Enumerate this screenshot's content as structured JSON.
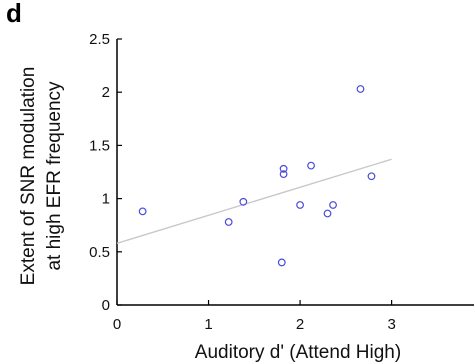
{
  "panel_label": "d",
  "chart_data": {
    "type": "scatter",
    "title": "",
    "xlabel": "Auditory d' (Attend High)",
    "ylabel_lines": [
      "Extent of SNR modulation",
      "at high EFR frequency"
    ],
    "xlim": [
      0,
      3.9
    ],
    "ylim": [
      0,
      2.5
    ],
    "xticks": [
      0,
      1,
      2,
      3
    ],
    "yticks": [
      0,
      0.5,
      1,
      1.5,
      2,
      2.5
    ],
    "xtick_labels": [
      "0",
      "1",
      "2",
      "3"
    ],
    "ytick_labels": [
      "0",
      "0.5",
      "1",
      "1.5",
      "2",
      "2.5"
    ],
    "grid": false,
    "series": [
      {
        "marker_color": "#4a4adb",
        "points": [
          {
            "x": 0.28,
            "y": 0.88
          },
          {
            "x": 1.22,
            "y": 0.78
          },
          {
            "x": 1.38,
            "y": 0.97
          },
          {
            "x": 1.8,
            "y": 0.4
          },
          {
            "x": 1.82,
            "y": 1.23
          },
          {
            "x": 1.82,
            "y": 1.28
          },
          {
            "x": 2.0,
            "y": 0.94
          },
          {
            "x": 2.12,
            "y": 1.31
          },
          {
            "x": 2.3,
            "y": 0.86
          },
          {
            "x": 2.36,
            "y": 0.94
          },
          {
            "x": 2.66,
            "y": 2.03
          },
          {
            "x": 2.78,
            "y": 1.21
          }
        ]
      }
    ],
    "fit_line": {
      "x": [
        0,
        3.0
      ],
      "y": [
        0.58,
        1.37
      ],
      "color": "#c8c8c8"
    }
  }
}
